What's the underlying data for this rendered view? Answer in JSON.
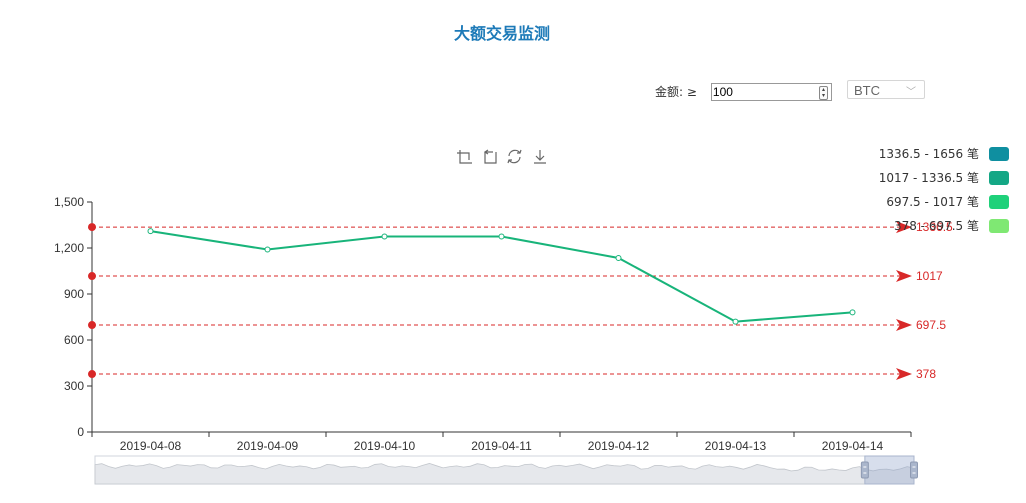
{
  "title": "大额交易监测",
  "filters": {
    "amount_label": "金额: ≥",
    "amount_value": "100",
    "currency": "BTC"
  },
  "toolbox": [
    "zoom-icon",
    "zoom-reset-icon",
    "restore-icon",
    "download-icon"
  ],
  "chart_data": {
    "type": "line",
    "title": "",
    "xlabel": "",
    "ylabel": "",
    "categories": [
      "2019-04-08",
      "2019-04-09",
      "2019-04-10",
      "2019-04-11",
      "2019-04-12",
      "2019-04-13",
      "2019-04-14"
    ],
    "series": [
      {
        "values": [
          1310,
          1190,
          1275,
          1275,
          1135,
          720,
          780
        ],
        "color": "#18b47a"
      }
    ],
    "yticks": [
      "0",
      "300",
      "600",
      "900",
      "1,200",
      "1,500"
    ],
    "ylim": [
      0,
      1500
    ],
    "grid": false,
    "mark_lines": [
      {
        "value": 1336.5,
        "label": "1336.5"
      },
      {
        "value": 1017,
        "label": "1017"
      },
      {
        "value": 697.5,
        "label": "697.5"
      },
      {
        "value": 378,
        "label": "378"
      }
    ],
    "visual_map": {
      "placement": "top-right",
      "pieces": [
        {
          "label": "1336.5 - 1656 笔",
          "color": "#0f8fa0"
        },
        {
          "label": "1017 - 1336.5 笔",
          "color": "#14a785"
        },
        {
          "label": "697.5 - 1017 笔",
          "color": "#1fd17a"
        },
        {
          "label": "378 - 697.5 笔",
          "color": "#7fe873"
        }
      ]
    },
    "data_zoom": {
      "start": 0.94,
      "end": 1.0
    }
  },
  "colors": {
    "markline": "#d82828",
    "axis": "#333333"
  }
}
